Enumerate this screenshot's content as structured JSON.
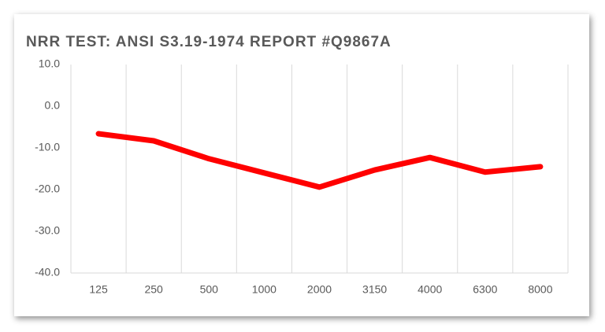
{
  "chart_data": {
    "type": "line",
    "title": "NRR TEST: ANSI S3.19-1974  REPORT #Q9867A",
    "categories": [
      "125",
      "250",
      "500",
      "1000",
      "2000",
      "3150",
      "4000",
      "6300",
      "8000"
    ],
    "series": [
      {
        "color": "#ff0000",
        "values": [
          -6.6,
          -8.3,
          -12.6,
          -16,
          -19.4,
          -15.3,
          -12.3,
          -15.8,
          -14.5
        ]
      }
    ],
    "ylim": [
      -40,
      10
    ],
    "yticks": [
      {
        "value": -40,
        "label": "-40.0"
      },
      {
        "value": -30,
        "label": "-30.0"
      },
      {
        "value": -20,
        "label": "-20.0"
      },
      {
        "value": -10,
        "label": "-10.0"
      },
      {
        "value": 0,
        "label": "0.0"
      },
      {
        "value": 10,
        "label": "10.0"
      }
    ],
    "grid": "category"
  }
}
